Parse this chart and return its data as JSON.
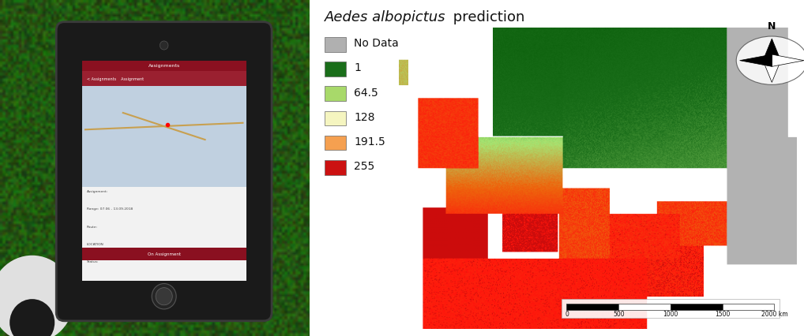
{
  "title_italic": "Aedes albopictus",
  "title_normal": " prediction",
  "legend_items": [
    {
      "label": "No Data",
      "color": "#b0b0b0"
    },
    {
      "label": "1",
      "color": "#1a6e1a"
    },
    {
      "label": "64.5",
      "color": "#a8d96a"
    },
    {
      "label": "128",
      "color": "#f5f5c0"
    },
    {
      "label": "191.5",
      "color": "#f5a050"
    },
    {
      "label": "255",
      "color": "#cc1111"
    }
  ],
  "title_fontsize": 13,
  "legend_fontsize": 10,
  "bg_color": "#ffffff",
  "compass_text": "N",
  "scale_bar_labels": [
    "0",
    "500",
    "1000",
    "1500",
    "2000 km"
  ],
  "figure_width": 10.18,
  "figure_height": 4.26,
  "dpi": 100
}
